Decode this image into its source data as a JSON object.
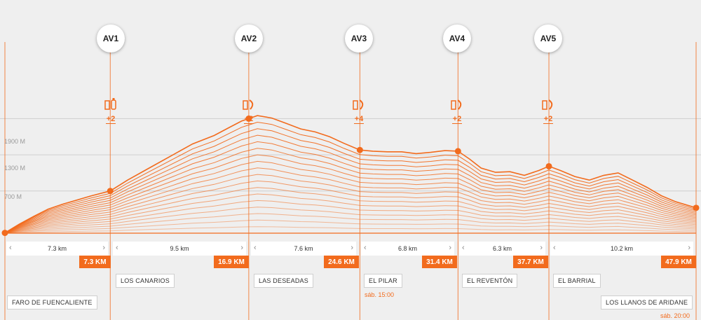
{
  "colors": {
    "accent": "#f26b1d",
    "background": "#efefef",
    "grid": "#cfcfcf"
  },
  "altitude_labels": [
    "1900 M",
    "1300 M",
    "700 M"
  ],
  "aid_stations": [
    {
      "label": "AV1",
      "supply": "+2",
      "icons": [
        "cup-icon",
        "bottle-icon"
      ]
    },
    {
      "label": "AV2",
      "supply": "+2",
      "icons": [
        "cup-icon",
        "banana-icon"
      ]
    },
    {
      "label": "AV3",
      "supply": "+4",
      "icons": [
        "cup-icon",
        "banana-icon"
      ]
    },
    {
      "label": "AV4",
      "supply": "+2",
      "icons": [
        "cup-icon",
        "banana-icon"
      ]
    },
    {
      "label": "AV5",
      "supply": "+2",
      "icons": [
        "cup-icon",
        "banana-icon"
      ]
    }
  ],
  "segments": [
    "7.3 km",
    "9.5 km",
    "7.6 km",
    "6.8 km",
    "6.3 km",
    "10.2 km"
  ],
  "km_markers": [
    "7.3 KM",
    "16.9 KM",
    "24.6 KM",
    "31.4 KM",
    "37.7 KM",
    "47.9 KM"
  ],
  "places": [
    "FARO DE FUENCALIENTE",
    "LOS CANARIOS",
    "LAS DESEADAS",
    "EL PILAR",
    "EL REVENTÓN",
    "EL BARRIAL",
    "LOS LLANOS DE ARIDANE"
  ],
  "times": [
    "sáb. 15:00",
    "sáb. 20:00"
  ],
  "chart_data": {
    "type": "area",
    "xlabel": "",
    "ylabel": "",
    "xlim": [
      0,
      47.9
    ],
    "ylim": [
      0,
      2300
    ],
    "y_ticks": [
      700,
      1300,
      1900
    ],
    "grid": true,
    "x": [
      0,
      1,
      2,
      3,
      4,
      5,
      6,
      7.3,
      8.5,
      10,
      11.5,
      13,
      14.5,
      15.6,
      16.4,
      16.9,
      17.5,
      18.5,
      19.5,
      20.5,
      21.5,
      22.5,
      23.5,
      24.6,
      25.5,
      26.5,
      27.5,
      28.5,
      29.5,
      30.5,
      31.4,
      32.2,
      33,
      34,
      35,
      36,
      37,
      37.7,
      38.5,
      39.5,
      40.5,
      41.5,
      42.5,
      43.5,
      44.5,
      45.5,
      46.5,
      47.9
    ],
    "elevation": [
      5,
      150,
      280,
      400,
      480,
      550,
      620,
      700,
      880,
      1080,
      1280,
      1480,
      1620,
      1760,
      1860,
      1900,
      1950,
      1910,
      1820,
      1730,
      1680,
      1600,
      1490,
      1380,
      1360,
      1350,
      1350,
      1320,
      1340,
      1370,
      1360,
      1230,
      1080,
      1010,
      1020,
      960,
      1040,
      1110,
      1040,
      940,
      880,
      960,
      1000,
      880,
      760,
      620,
      520,
      420
    ],
    "checkpoints_km": [
      0,
      7.3,
      16.9,
      24.6,
      31.4,
      37.7,
      47.9
    ]
  }
}
